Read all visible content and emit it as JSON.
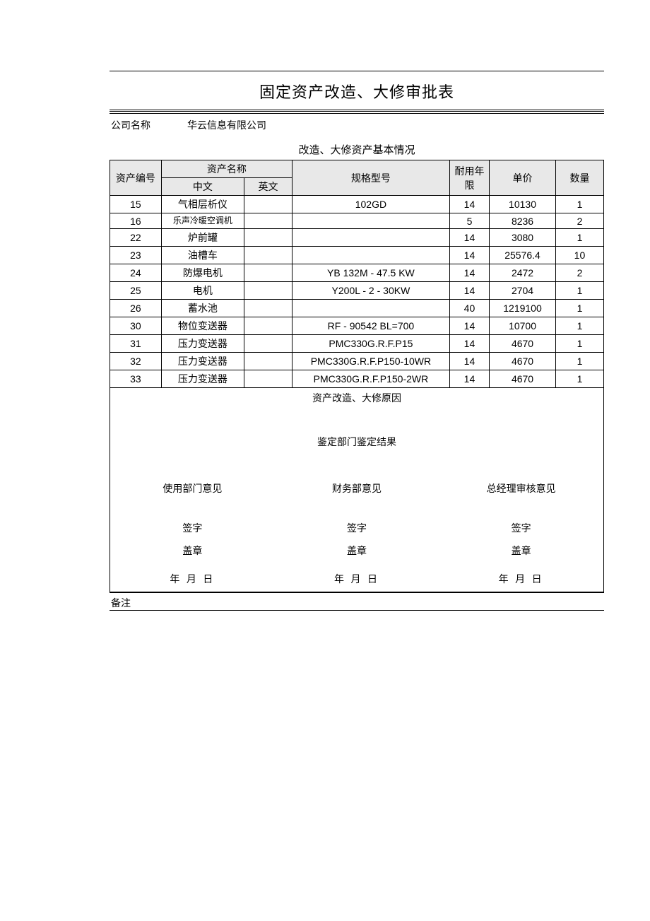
{
  "title": "固定资产改造、大修审批表",
  "company_label": "公司名称",
  "company_value": "华云信息有限公司",
  "section_title": "改造、大修资产基本情况",
  "table": {
    "headers": {
      "asset_id": "资产编号",
      "asset_name": "资产名称",
      "name_cn": "中文",
      "name_en": "英文",
      "spec": "规格型号",
      "life": "耐用年限",
      "price": "单价",
      "qty": "数量"
    },
    "rows": [
      {
        "id": "15",
        "cn": "气相层析仪",
        "en": "",
        "spec": "102GD",
        "life": "14",
        "price": "10130",
        "qty": "1"
      },
      {
        "id": "16",
        "cn": "乐声冷暖空调机",
        "en": "",
        "spec": "",
        "life": "5",
        "price": "8236",
        "qty": "2"
      },
      {
        "id": "22",
        "cn": "炉前罐",
        "en": "",
        "spec": "",
        "life": "14",
        "price": "3080",
        "qty": "1"
      },
      {
        "id": "23",
        "cn": "油槽车",
        "en": "",
        "spec": "",
        "life": "14",
        "price": "25576.4",
        "qty": "10"
      },
      {
        "id": "24",
        "cn": "防爆电机",
        "en": "",
        "spec": "YB 132M - 47.5 KW",
        "life": "14",
        "price": "2472",
        "qty": "2"
      },
      {
        "id": "25",
        "cn": "电机",
        "en": "",
        "spec": "Y200L - 2 - 30KW",
        "life": "14",
        "price": "2704",
        "qty": "1"
      },
      {
        "id": "26",
        "cn": "蓄水池",
        "en": "",
        "spec": "",
        "life": "40",
        "price": "1219100",
        "qty": "1"
      },
      {
        "id": "30",
        "cn": "物位变送器",
        "en": "",
        "spec": "RF - 90542 BL=700",
        "life": "14",
        "price": "10700",
        "qty": "1"
      },
      {
        "id": "31",
        "cn": "压力变送器",
        "en": "",
        "spec": "PMC330G.R.F.P15",
        "life": "14",
        "price": "4670",
        "qty": "1"
      },
      {
        "id": "32",
        "cn": "压力变送器",
        "en": "",
        "spec": "PMC330G.R.F.P150-10WR",
        "life": "14",
        "price": "4670",
        "qty": "1"
      },
      {
        "id": "33",
        "cn": "压力变送器",
        "en": "",
        "spec": "PMC330G.R.F.P150-2WR",
        "life": "14",
        "price": "4670",
        "qty": "1"
      }
    ]
  },
  "reason_title": "资产改造、大修原因",
  "verify_title": "鉴定部门鉴定结果",
  "approval": {
    "dept_opinion": "使用部门意见",
    "finance_opinion": "财务部意见",
    "gm_opinion": "总经理审核意见",
    "sign": "签字",
    "stamp": "盖章",
    "date": "年  月  日"
  },
  "remark_label": "备注",
  "colors": {
    "header_bg": "#e8e8e8",
    "border": "#000000",
    "text": "#000000",
    "background": "#ffffff"
  }
}
